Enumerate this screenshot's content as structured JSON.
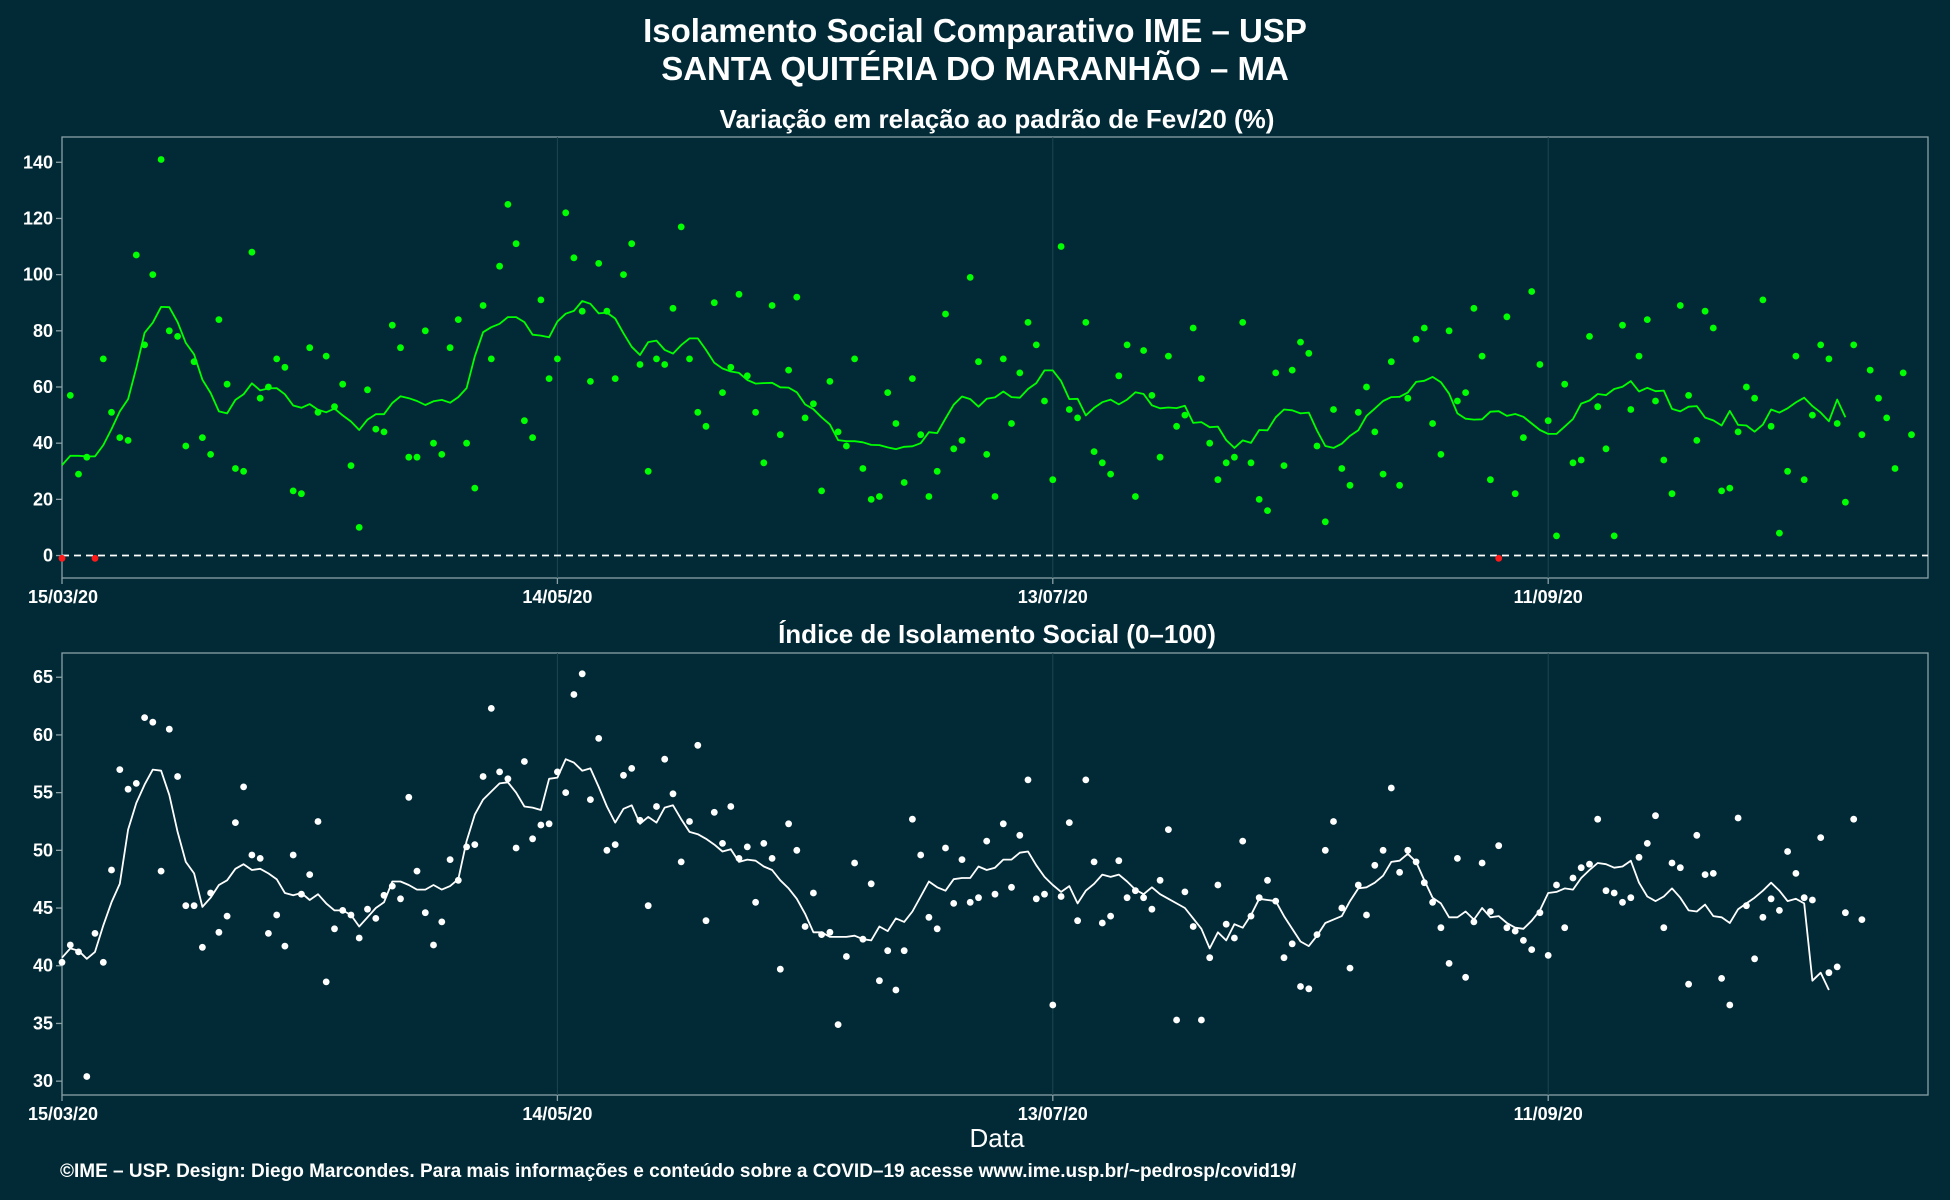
{
  "header": {
    "title_line1": "Isolamento Social Comparativo IME – USP",
    "title_line2": "SANTA QUITÉRIA DO MARANHÃO – MA"
  },
  "footer": {
    "text": "©IME – USP. Design: Diego Marcondes. Para mais informações e conteúdo sobre a COVID–19 acesse www.ime.usp.br/~pedrosp/covid19/"
  },
  "colors": {
    "background": "#022a36",
    "panel_border": "#8aa0a6",
    "variation_series": "#00ff00",
    "negative_points": "#ff1a1a",
    "index_series": "#ffffff"
  },
  "chart_data": [
    {
      "type": "scatter",
      "title": "Variação em relação ao padrão de Fev/20 (%)",
      "xlabel": "",
      "ylabel": "",
      "x_start": "15/03/20",
      "x_ticks": [
        "15/03/20",
        "14/05/20",
        "13/07/20",
        "11/09/20"
      ],
      "x_tick_days": [
        0,
        60,
        120,
        180
      ],
      "xlim_days": [
        0,
        226
      ],
      "ylim": [
        -8,
        149
      ],
      "y_ticks": [
        0,
        20,
        40,
        60,
        80,
        100,
        120,
        140
      ],
      "reference_line": 0,
      "grid": false,
      "series": [
        {
          "kind": "points",
          "values": [
            -1,
            57,
            29,
            35,
            -1,
            70,
            51,
            42,
            41,
            107,
            75,
            100,
            141,
            80,
            78,
            39,
            69,
            42,
            36,
            84,
            61,
            31,
            30,
            108,
            56,
            60,
            70,
            67,
            23,
            22,
            74,
            51,
            71,
            53,
            61,
            32,
            10,
            59,
            45,
            44,
            82,
            74,
            35,
            35,
            80,
            40,
            36,
            74,
            84,
            40,
            24,
            89,
            70,
            103,
            125,
            111,
            48,
            42,
            91,
            63,
            70,
            122,
            106,
            87,
            62,
            104,
            87,
            63,
            100,
            111,
            68,
            30,
            70,
            68,
            88,
            117,
            70,
            51,
            46,
            90,
            58,
            67,
            93,
            64,
            51,
            33,
            89,
            43,
            66,
            92,
            49,
            54,
            23,
            62,
            44,
            39,
            70,
            31,
            20,
            21,
            58,
            47,
            26,
            63,
            43,
            21,
            30,
            86,
            38,
            41,
            99,
            69,
            36,
            21,
            70,
            47,
            65,
            83,
            75,
            55,
            27,
            110,
            52,
            49,
            83,
            37,
            33,
            29,
            64,
            75,
            21,
            73,
            57,
            35,
            71,
            46,
            50,
            81,
            63,
            40,
            27,
            33,
            35,
            83,
            33,
            20,
            16,
            65,
            32,
            66,
            76,
            72,
            39,
            12,
            52,
            31,
            25,
            51,
            60,
            44,
            29,
            69,
            25,
            56,
            77,
            81,
            47,
            36,
            80,
            55,
            58,
            88,
            71,
            27,
            -1,
            85,
            22,
            42,
            94,
            68,
            48,
            7,
            61,
            33,
            34,
            78,
            53,
            38,
            7,
            82,
            52,
            71,
            84,
            55,
            34,
            22,
            89,
            57,
            41,
            87,
            81,
            23,
            24,
            44,
            60,
            56,
            91,
            46,
            8,
            30,
            71,
            27,
            50,
            75,
            70,
            47,
            19,
            75,
            43,
            66,
            56,
            49,
            31,
            65,
            43
          ]
        },
        {
          "kind": "moving_average",
          "values": [
            32.2,
            35.5,
            35.5,
            35.3,
            35.3,
            39.3,
            45.0,
            51.3,
            55.7,
            66.8,
            79.3,
            82.9,
            88.5,
            88.4,
            83.1,
            75.7,
            71.6,
            62.6,
            57.9,
            51.3,
            50.6,
            55.4,
            57.4,
            61.3,
            58.8,
            59.5,
            59.6,
            57.4,
            53.4,
            52.6,
            53.9,
            51.9,
            51.0,
            52.3,
            49.9,
            47.7,
            44.7,
            48.4,
            50.3,
            50.3,
            54.3,
            56.7,
            56.0,
            55.0,
            53.6,
            54.9,
            55.4,
            54.4,
            56.4,
            59.6,
            70.9,
            79.5,
            81.3,
            82.5,
            84.9,
            84.9,
            83.1,
            78.6,
            78.3,
            77.7,
            83.3,
            86.1,
            87.1,
            90.6,
            89.6,
            86.2,
            86.5,
            84.4,
            79.1,
            74.3,
            71.4,
            76.0,
            76.5,
            73.2,
            71.9,
            74.9,
            77.3,
            77.3,
            73.2,
            68.6,
            66.6,
            65.5,
            65.0,
            62.5,
            61.2,
            61.4,
            61.5,
            59.9,
            59.8,
            58.1,
            53.8,
            52.1,
            49.2,
            46.7,
            41.1,
            40.7,
            40.7,
            40.3,
            39.4,
            39.3,
            38.5,
            37.9,
            38.7,
            38.9,
            40.0,
            43.9,
            43.6,
            48.8,
            53.7,
            56.6,
            55.7,
            53.0,
            55.8,
            56.3,
            58.4,
            56.4,
            56.2,
            59.3,
            61.4,
            65.9,
            65.9,
            62.1,
            55.7,
            55.8,
            49.9,
            52.6,
            54.6,
            55.5,
            53.8,
            55.5,
            58.1,
            57.5,
            53.5,
            52.4,
            52.7,
            52.5,
            53.3,
            47.2,
            47.5,
            45.7,
            45.9,
            41.1,
            38.3,
            41.0,
            40.1,
            44.7,
            44.6,
            49.2,
            52.0,
            51.7,
            50.6,
            50.9,
            44.5,
            39.0,
            38.3,
            39.8,
            42.6,
            44.6,
            49.7,
            52.3,
            55.0,
            56.4,
            56.5,
            58.0,
            61.8,
            62.2,
            63.6,
            61.7,
            57.6,
            50.6,
            48.7,
            48.4,
            48.5,
            51.2,
            51.4,
            49.7,
            50.4,
            49.4,
            47.0,
            44.7,
            43.3,
            43.3,
            45.9,
            48.6,
            54.1,
            55.2,
            57.5,
            57.1,
            59.3,
            60.1,
            62.1,
            58.4,
            59.7,
            58.5,
            58.7,
            52.2,
            51.3,
            53.0,
            53.2,
            49.1,
            48.1,
            46.3,
            51.5,
            46.5,
            46.3,
            44.1,
            46.6,
            52.0,
            50.9,
            52.4,
            54.5,
            56.2,
            53.2,
            50.9,
            47.8,
            55.5,
            49.2
          ]
        }
      ]
    },
    {
      "type": "scatter",
      "title": "Índice de Isolamento Social (0–100)",
      "xlabel": "Data",
      "ylabel": "",
      "x_start": "15/03/20",
      "x_ticks": [
        "15/03/20",
        "14/05/20",
        "13/07/20",
        "11/09/20"
      ],
      "x_tick_days": [
        0,
        60,
        120,
        180
      ],
      "xlim_days": [
        0,
        226
      ],
      "ylim": [
        28.8,
        67.1
      ],
      "y_ticks": [
        30,
        35,
        40,
        45,
        50,
        55,
        60,
        65
      ],
      "grid": false,
      "series": [
        {
          "kind": "points",
          "values": [
            40.3,
            41.8,
            41.2,
            30.4,
            42.8,
            40.3,
            48.3,
            57.0,
            55.3,
            55.8,
            61.5,
            61.1,
            48.2,
            60.5,
            56.4,
            45.2,
            45.2,
            41.6,
            46.3,
            42.9,
            44.3,
            52.4,
            55.5,
            49.6,
            49.3,
            42.8,
            44.4,
            41.7,
            49.6,
            46.2,
            47.9,
            52.5,
            38.6,
            43.2,
            44.8,
            44.4,
            42.4,
            44.9,
            44.1,
            46.1,
            46.9,
            45.8,
            54.6,
            48.2,
            44.6,
            41.8,
            43.8,
            49.2,
            47.4,
            50.3,
            50.5,
            56.4,
            62.3,
            56.8,
            56.2,
            50.2,
            57.7,
            51.0,
            52.2,
            52.3,
            56.8,
            55.0,
            63.5,
            65.3,
            54.4,
            59.7,
            50.0,
            50.5,
            56.5,
            57.1,
            52.6,
            45.2,
            53.8,
            57.9,
            54.9,
            49.0,
            52.5,
            59.1,
            43.9,
            53.3,
            50.6,
            53.8,
            49.3,
            50.3,
            45.5,
            50.6,
            49.3,
            39.7,
            52.3,
            50.0,
            43.4,
            46.3,
            42.7,
            42.9,
            34.9,
            40.8,
            48.9,
            42.3,
            47.1,
            38.7,
            41.3,
            37.9,
            41.3,
            52.7,
            49.6,
            44.2,
            43.2,
            50.2,
            45.4,
            49.2,
            45.5,
            45.9,
            50.8,
            46.2,
            52.3,
            46.8,
            51.3,
            56.1,
            45.8,
            46.2,
            36.6,
            46.0,
            52.4,
            43.9,
            56.1,
            49.0,
            43.7,
            44.3,
            49.1,
            45.9,
            46.5,
            45.9,
            44.9,
            47.4,
            51.8,
            35.3,
            46.4,
            43.4,
            35.3,
            40.7,
            47.0,
            43.6,
            42.4,
            50.8,
            44.3,
            45.9,
            47.4,
            45.6,
            40.7,
            41.9,
            38.2,
            38.0,
            42.7,
            50.0,
            52.5,
            45.0,
            39.8,
            47.0,
            44.4,
            48.7,
            50.0,
            55.4,
            48.1,
            50.0,
            49.0,
            47.2,
            45.5,
            43.3,
            40.2,
            49.3,
            39.0,
            43.8,
            48.9,
            44.7,
            50.4,
            43.3,
            43.0,
            42.2,
            41.4,
            44.6,
            40.9,
            47.0,
            43.3,
            47.6,
            48.5,
            48.8,
            52.7,
            46.5,
            46.3,
            45.5,
            45.9,
            49.4,
            50.6,
            53.0,
            43.3,
            48.9,
            48.5,
            38.4,
            51.3,
            47.9,
            48.0,
            38.9,
            36.6,
            52.8,
            45.2,
            40.6,
            44.2,
            45.8,
            44.8,
            49.9,
            48.0,
            45.9,
            45.7,
            51.1,
            39.4,
            39.9,
            44.6,
            52.7,
            44.0
          ]
        },
        {
          "kind": "moving_average",
          "values": [
            40.7,
            41.5,
            41.3,
            40.6,
            41.2,
            43.5,
            45.5,
            47.1,
            51.8,
            54.1,
            55.7,
            57.0,
            56.9,
            54.8,
            51.6,
            49.0,
            48.0,
            45.1,
            45.9,
            47.0,
            47.4,
            48.4,
            48.8,
            48.3,
            48.4,
            48.0,
            47.5,
            46.3,
            46.1,
            46.3,
            45.7,
            46.2,
            45.4,
            44.8,
            44.8,
            44.4,
            43.4,
            44.2,
            45.0,
            45.5,
            47.3,
            47.3,
            47.0,
            46.6,
            46.6,
            47.0,
            46.6,
            46.9,
            47.5,
            50.8,
            53.1,
            54.4,
            55.1,
            55.8,
            55.9,
            55.0,
            53.8,
            53.7,
            53.5,
            56.2,
            56.3,
            57.9,
            57.6,
            56.9,
            57.1,
            55.5,
            53.8,
            52.4,
            53.6,
            53.9,
            52.3,
            52.9,
            52.4,
            53.7,
            53.9,
            52.7,
            51.6,
            51.4,
            51.0,
            50.5,
            49.9,
            50.1,
            49.0,
            49.2,
            49.1,
            48.6,
            48.3,
            47.4,
            46.7,
            45.8,
            44.5,
            42.9,
            42.9,
            42.5,
            42.5,
            42.5,
            42.6,
            42.3,
            42.2,
            43.4,
            43.0,
            44.1,
            43.8,
            44.7,
            46.0,
            47.3,
            46.8,
            46.5,
            47.5,
            47.6,
            47.6,
            48.6,
            48.3,
            48.5,
            49.2,
            49.2,
            49.8,
            49.9,
            48.7,
            47.7,
            47.0,
            46.4,
            46.9,
            45.4,
            46.5,
            47.1,
            47.9,
            47.7,
            47.9,
            47.3,
            46.6,
            46.2,
            46.8,
            46.2,
            45.8,
            45.4,
            45.0,
            44.1,
            43.2,
            41.5,
            42.9,
            42.2,
            43.6,
            43.3,
            44.4,
            45.8,
            45.7,
            45.6,
            44.3,
            43.2,
            42.1,
            41.7,
            42.6,
            43.7,
            44.0,
            44.3,
            45.6,
            46.7,
            46.8,
            47.2,
            47.8,
            49.0,
            49.1,
            49.7,
            49.0,
            47.4,
            45.9,
            45.4,
            44.2,
            44.2,
            44.7,
            44.0,
            45.0,
            44.2,
            44.3,
            43.7,
            43.3,
            43.2,
            43.9,
            44.8,
            46.3,
            46.4,
            46.7,
            46.6,
            47.6,
            48.3,
            48.9,
            48.8,
            48.5,
            48.6,
            49.1,
            47.2,
            46.0,
            45.6,
            46.0,
            46.7,
            45.9,
            44.8,
            44.7,
            45.3,
            44.3,
            44.2,
            43.7,
            44.9,
            45.4,
            45.9,
            46.5,
            47.2,
            46.5,
            45.6,
            45.8,
            45.4,
            38.7,
            39.4,
            37.9
          ]
        }
      ]
    }
  ]
}
